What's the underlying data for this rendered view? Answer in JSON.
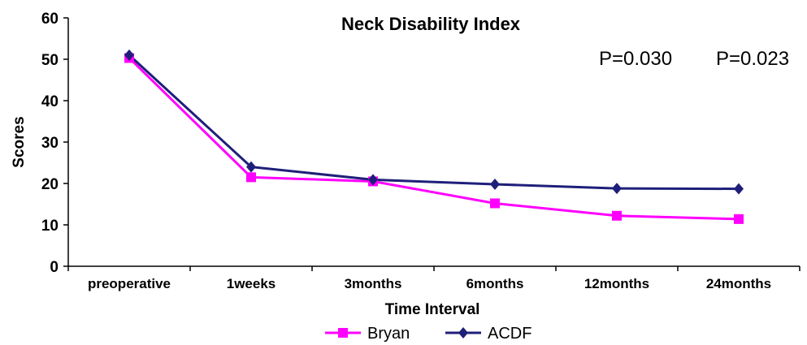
{
  "chart_data": {
    "type": "line",
    "title": "Neck Disability Index",
    "xlabel": "Time Interval",
    "ylabel": "Scores",
    "ylim": [
      0,
      60
    ],
    "yticks": [
      "0",
      "10",
      "20",
      "30",
      "40",
      "50",
      "60"
    ],
    "categories": [
      "preoperative",
      "1weeks",
      "3months",
      "6months",
      "12months",
      "24months"
    ],
    "series": [
      {
        "name": "Bryan",
        "color": "#ff00ff",
        "marker": "square",
        "values": [
          50.3,
          21.5,
          20.5,
          15.2,
          12.2,
          11.4
        ]
      },
      {
        "name": "ACDF",
        "color": "#1f1f7a",
        "marker": "diamond",
        "values": [
          51.0,
          24.0,
          20.9,
          19.8,
          18.8,
          18.7
        ]
      }
    ],
    "annotations": [
      "P=0.030",
      "P=0.023"
    ],
    "grid": false,
    "legend": "bottom"
  }
}
